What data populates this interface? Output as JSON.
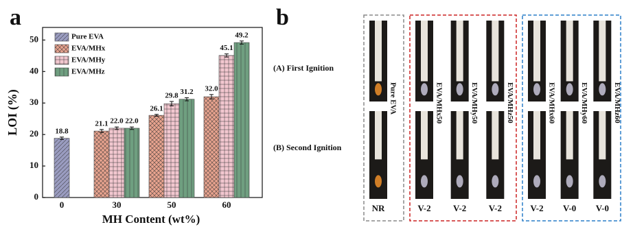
{
  "chart_data": {
    "type": "bar",
    "panel_label": "a",
    "x_label": "MH Content (wt%)",
    "y_label": "LOI (%)",
    "categories": [
      "0",
      "30",
      "50",
      "60"
    ],
    "series": [
      {
        "name": "Pure EVA",
        "color": "#9a9cc0",
        "hatch": "diagonal",
        "values": [
          18.8,
          null,
          null,
          null
        ],
        "errors": [
          0.4,
          null,
          null,
          null
        ],
        "value_labels": [
          "18.8",
          null,
          null,
          null
        ]
      },
      {
        "name": "EVA/MHx",
        "color": "#e9a48f",
        "hatch": "cross",
        "values": [
          null,
          21.1,
          26.1,
          32.0
        ],
        "errors": [
          null,
          0.5,
          0.3,
          0.7
        ],
        "value_labels": [
          null,
          "21.1",
          "26.1",
          "32.0"
        ]
      },
      {
        "name": "EVA/MHy",
        "color": "#f2c7cf",
        "hatch": "grid",
        "values": [
          null,
          22.0,
          29.8,
          45.1
        ],
        "errors": [
          null,
          0.4,
          0.7,
          0.5
        ],
        "value_labels": [
          null,
          "22.0",
          "29.8",
          "45.1"
        ]
      },
      {
        "name": "EVA/MHz",
        "color": "#6f9f80",
        "hatch": "vertical",
        "values": [
          null,
          22.0,
          31.2,
          49.2
        ],
        "errors": [
          null,
          0.4,
          0.5,
          0.5
        ],
        "value_labels": [
          null,
          "22.0",
          "31.2",
          "49.2"
        ]
      }
    ],
    "ylim": [
      0,
      54
    ],
    "yticks": [
      0,
      10,
      20,
      30,
      40,
      50
    ],
    "legend": "upper left"
  },
  "photo_panel": {
    "panel_label": "b",
    "rows": [
      "(A)  First Ignition",
      "(B) Second Ignition"
    ],
    "groups": [
      {
        "color": "#888888",
        "samples": [
          {
            "name": "Pure EVA",
            "rating": "NR"
          }
        ]
      },
      {
        "color": "#cc2222",
        "samples": [
          {
            "name": "EVA/MHx50",
            "rating": "V-2"
          },
          {
            "name": "EVA/MHy50",
            "rating": "V-2"
          },
          {
            "name": "EVA/MHz50",
            "rating": "V-2"
          }
        ]
      },
      {
        "color": "#2a7fc8",
        "samples": [
          {
            "name": "EVA/MHx60",
            "rating": "V-2"
          },
          {
            "name": "EVA/MHy60",
            "rating": "V-0"
          },
          {
            "name": "EVA/MHz60",
            "rating": "V-0"
          }
        ]
      }
    ]
  }
}
